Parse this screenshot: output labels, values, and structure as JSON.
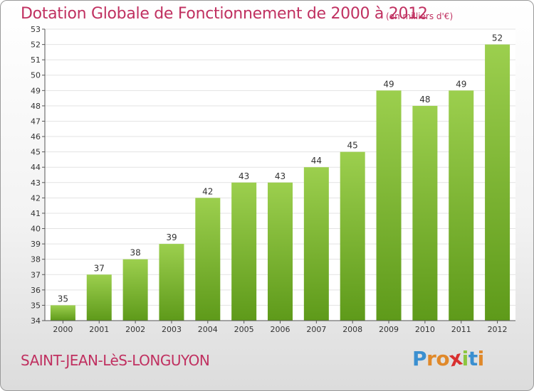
{
  "title": "Dotation Globale de Fonctionnement de 2000 à 2012",
  "subtitle": "(en milliers d'€)",
  "commune": "SAINT-JEAN-LèS-LONGUYON",
  "logo": {
    "text": "Proxiti",
    "letters": [
      {
        "char": "P",
        "color": "#3a8fd0"
      },
      {
        "char": "r",
        "color": "#e0892a"
      },
      {
        "char": "o",
        "color": "#e0892a"
      },
      {
        "char": "x",
        "color": "#d83030"
      },
      {
        "char": "i",
        "color": "#8cc63f"
      },
      {
        "char": "t",
        "color": "#3a8fd0"
      },
      {
        "char": "i",
        "color": "#e0892a"
      }
    ]
  },
  "colors": {
    "title": "#c03060",
    "bar_top": "#9ccf4e",
    "bar_bottom": "#5e9a1a",
    "grid": "#e3e3e3",
    "axis": "#555555"
  },
  "chart_data": {
    "type": "bar",
    "categories": [
      "2000",
      "2001",
      "2002",
      "2003",
      "2004",
      "2005",
      "2006",
      "2007",
      "2008",
      "2009",
      "2010",
      "2011",
      "2012"
    ],
    "values": [
      35,
      37,
      38,
      39,
      42,
      43,
      43,
      44,
      45,
      49,
      48,
      49,
      52
    ],
    "ylim": [
      34,
      53
    ],
    "yticks": [
      34,
      35,
      36,
      37,
      38,
      39,
      40,
      41,
      42,
      43,
      44,
      45,
      46,
      47,
      48,
      49,
      50,
      51,
      52,
      53
    ],
    "grid": true,
    "legend": "none"
  }
}
